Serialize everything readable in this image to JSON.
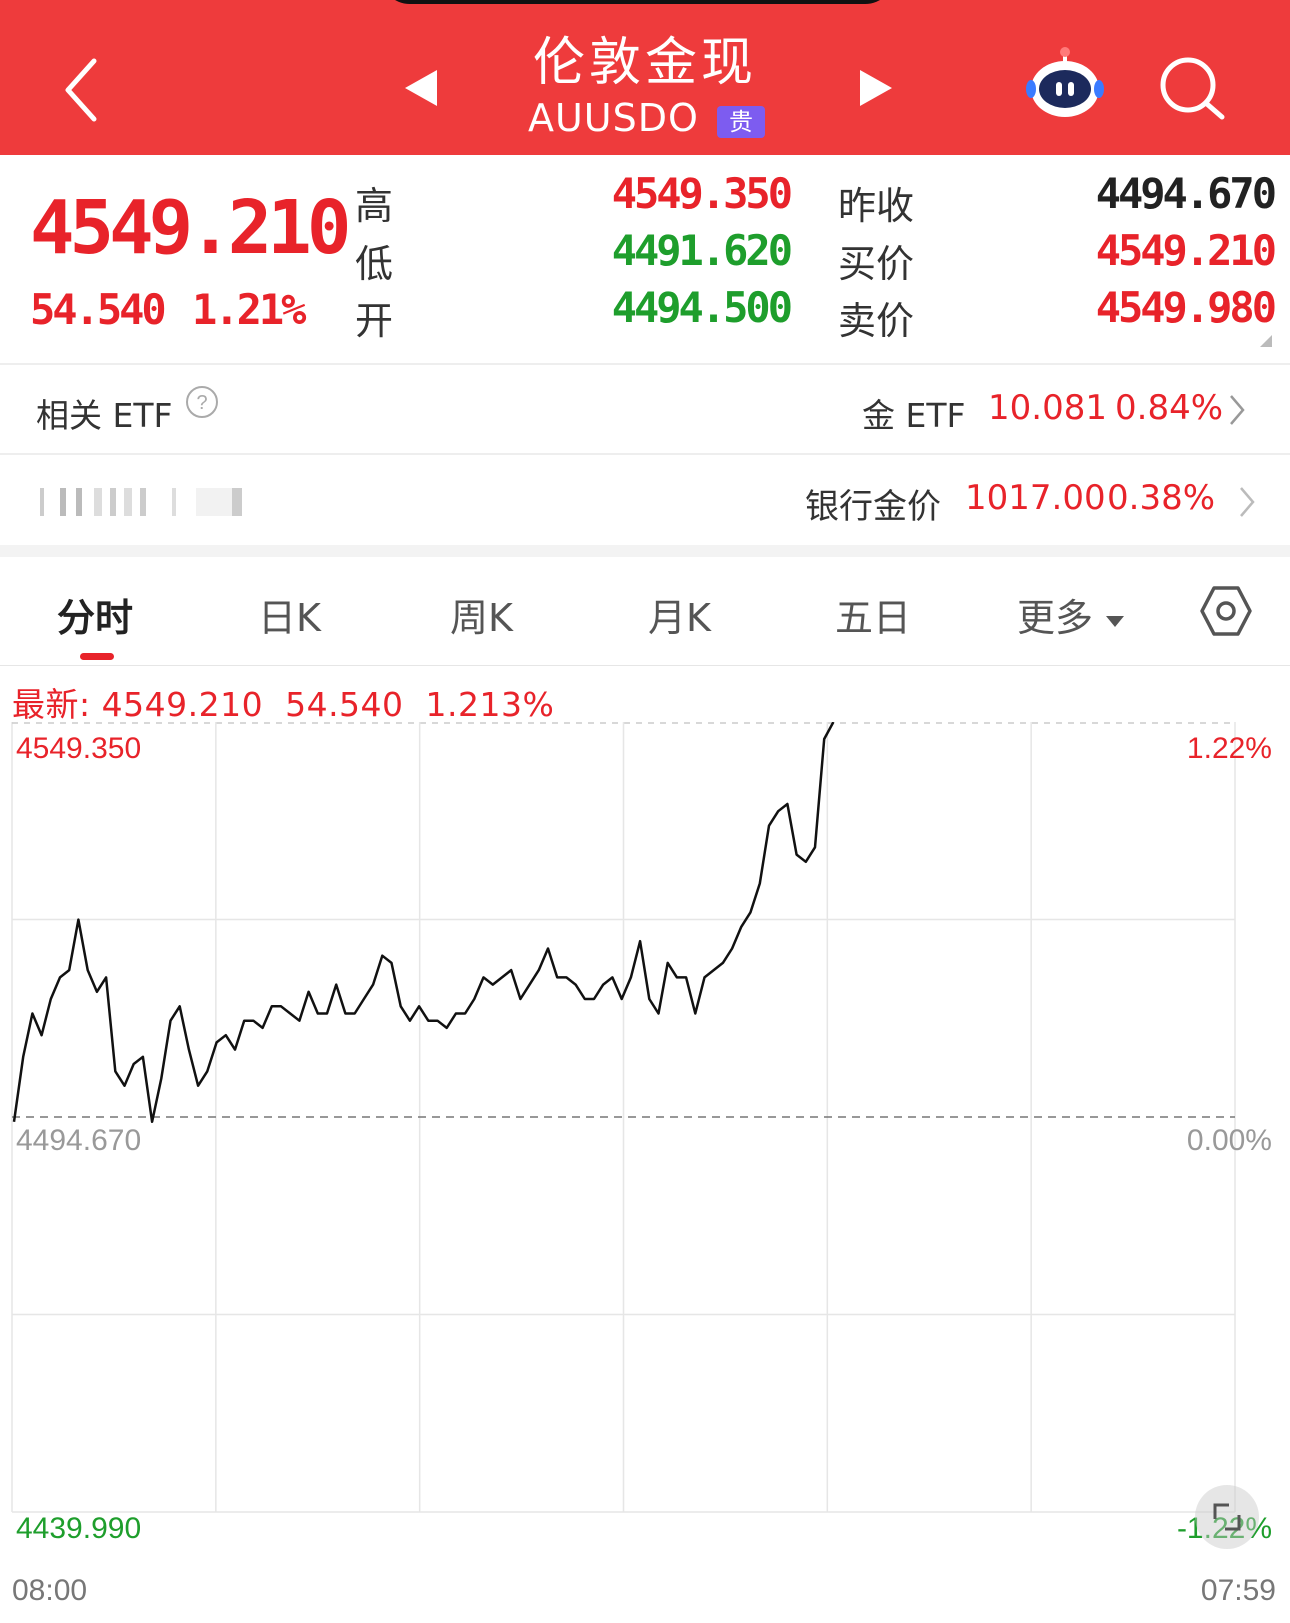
{
  "header": {
    "title": "伦敦金现",
    "symbol": "AUUSDO",
    "badge": "贵"
  },
  "quote": {
    "price": "4549.210",
    "change": "54.540",
    "change_pct": "1.21%",
    "high_label": "高",
    "low_label": "低",
    "open_label": "开",
    "high": "4549.350",
    "low": "4491.620",
    "open": "4494.500",
    "prev_close_label": "昨收",
    "bid_label": "买价",
    "ask_label": "卖价",
    "prev_close": "4494.670",
    "bid": "4549.210",
    "ask": "4549.980"
  },
  "etf_row": {
    "label": "相关 ETF",
    "name": "金 ETF",
    "value": "10.081",
    "pct": "0.84%"
  },
  "bank_row": {
    "name": "银行金价",
    "value": "1017.00",
    "pct": "0.38%"
  },
  "tabs": [
    "分时",
    "日K",
    "周K",
    "月K",
    "五日",
    "更多"
  ],
  "active_tab": "分时",
  "latest": {
    "label": "最新:",
    "price": "4549.210",
    "change": "54.540",
    "pct": "1.213%"
  },
  "colors": {
    "header_bg": "#ee3b3c",
    "up": "#e8232a",
    "down": "#1e9e2c",
    "badge": "#7d5cf0"
  },
  "chart_data": {
    "type": "line",
    "x_start_label": "08:00",
    "x_end_label": "07:59",
    "y_top_label": "4549.350",
    "y_mid_label": "4494.670",
    "y_bottom_label": "4439.990",
    "pct_top_label": "1.22%",
    "pct_mid_label": "0.00%",
    "pct_bottom_label": "-1.22%",
    "ylim": [
      4439.99,
      4549.35
    ],
    "baseline": 4494.67,
    "session_progress": 0.67,
    "series": [
      {
        "values": [
          4494.0,
          4503.0,
          4509.0,
          4506.0,
          4511.0,
          4514.0,
          4515.0,
          4522.0,
          4515.0,
          4512.0,
          4514.0,
          4501.0,
          4499.0,
          4502.0,
          4503.0,
          4494.0,
          4500.0,
          4508.0,
          4510.0,
          4504.0,
          4499.0,
          4501.0,
          4505.0,
          4506.0,
          4504.0,
          4508.0,
          4508.0,
          4507.0,
          4510.0,
          4510.0,
          4509.0,
          4508.0,
          4512.0,
          4509.0,
          4509.0,
          4513.0,
          4509.0,
          4509.0,
          4511.0,
          4513.0,
          4517.0,
          4516.0,
          4510.0,
          4508.0,
          4510.0,
          4508.0,
          4508.0,
          4507.0,
          4509.0,
          4509.0,
          4511.0,
          4514.0,
          4513.0,
          4514.0,
          4515.0,
          4511.0,
          4513.0,
          4515.0,
          4518.0,
          4514.0,
          4514.0,
          4513.0,
          4511.0,
          4511.0,
          4513.0,
          4514.0,
          4511.0,
          4514.0,
          4519.0,
          4511.0,
          4509.0,
          4516.0,
          4514.0,
          4514.0,
          4509.0,
          4514.0,
          4515.0,
          4516.0,
          4518.0,
          4521.0,
          4523.0,
          4527.0,
          4535.0,
          4537.0,
          4538.0,
          4531.0,
          4530.0,
          4532.0,
          4547.0,
          4549.35
        ]
      }
    ]
  }
}
